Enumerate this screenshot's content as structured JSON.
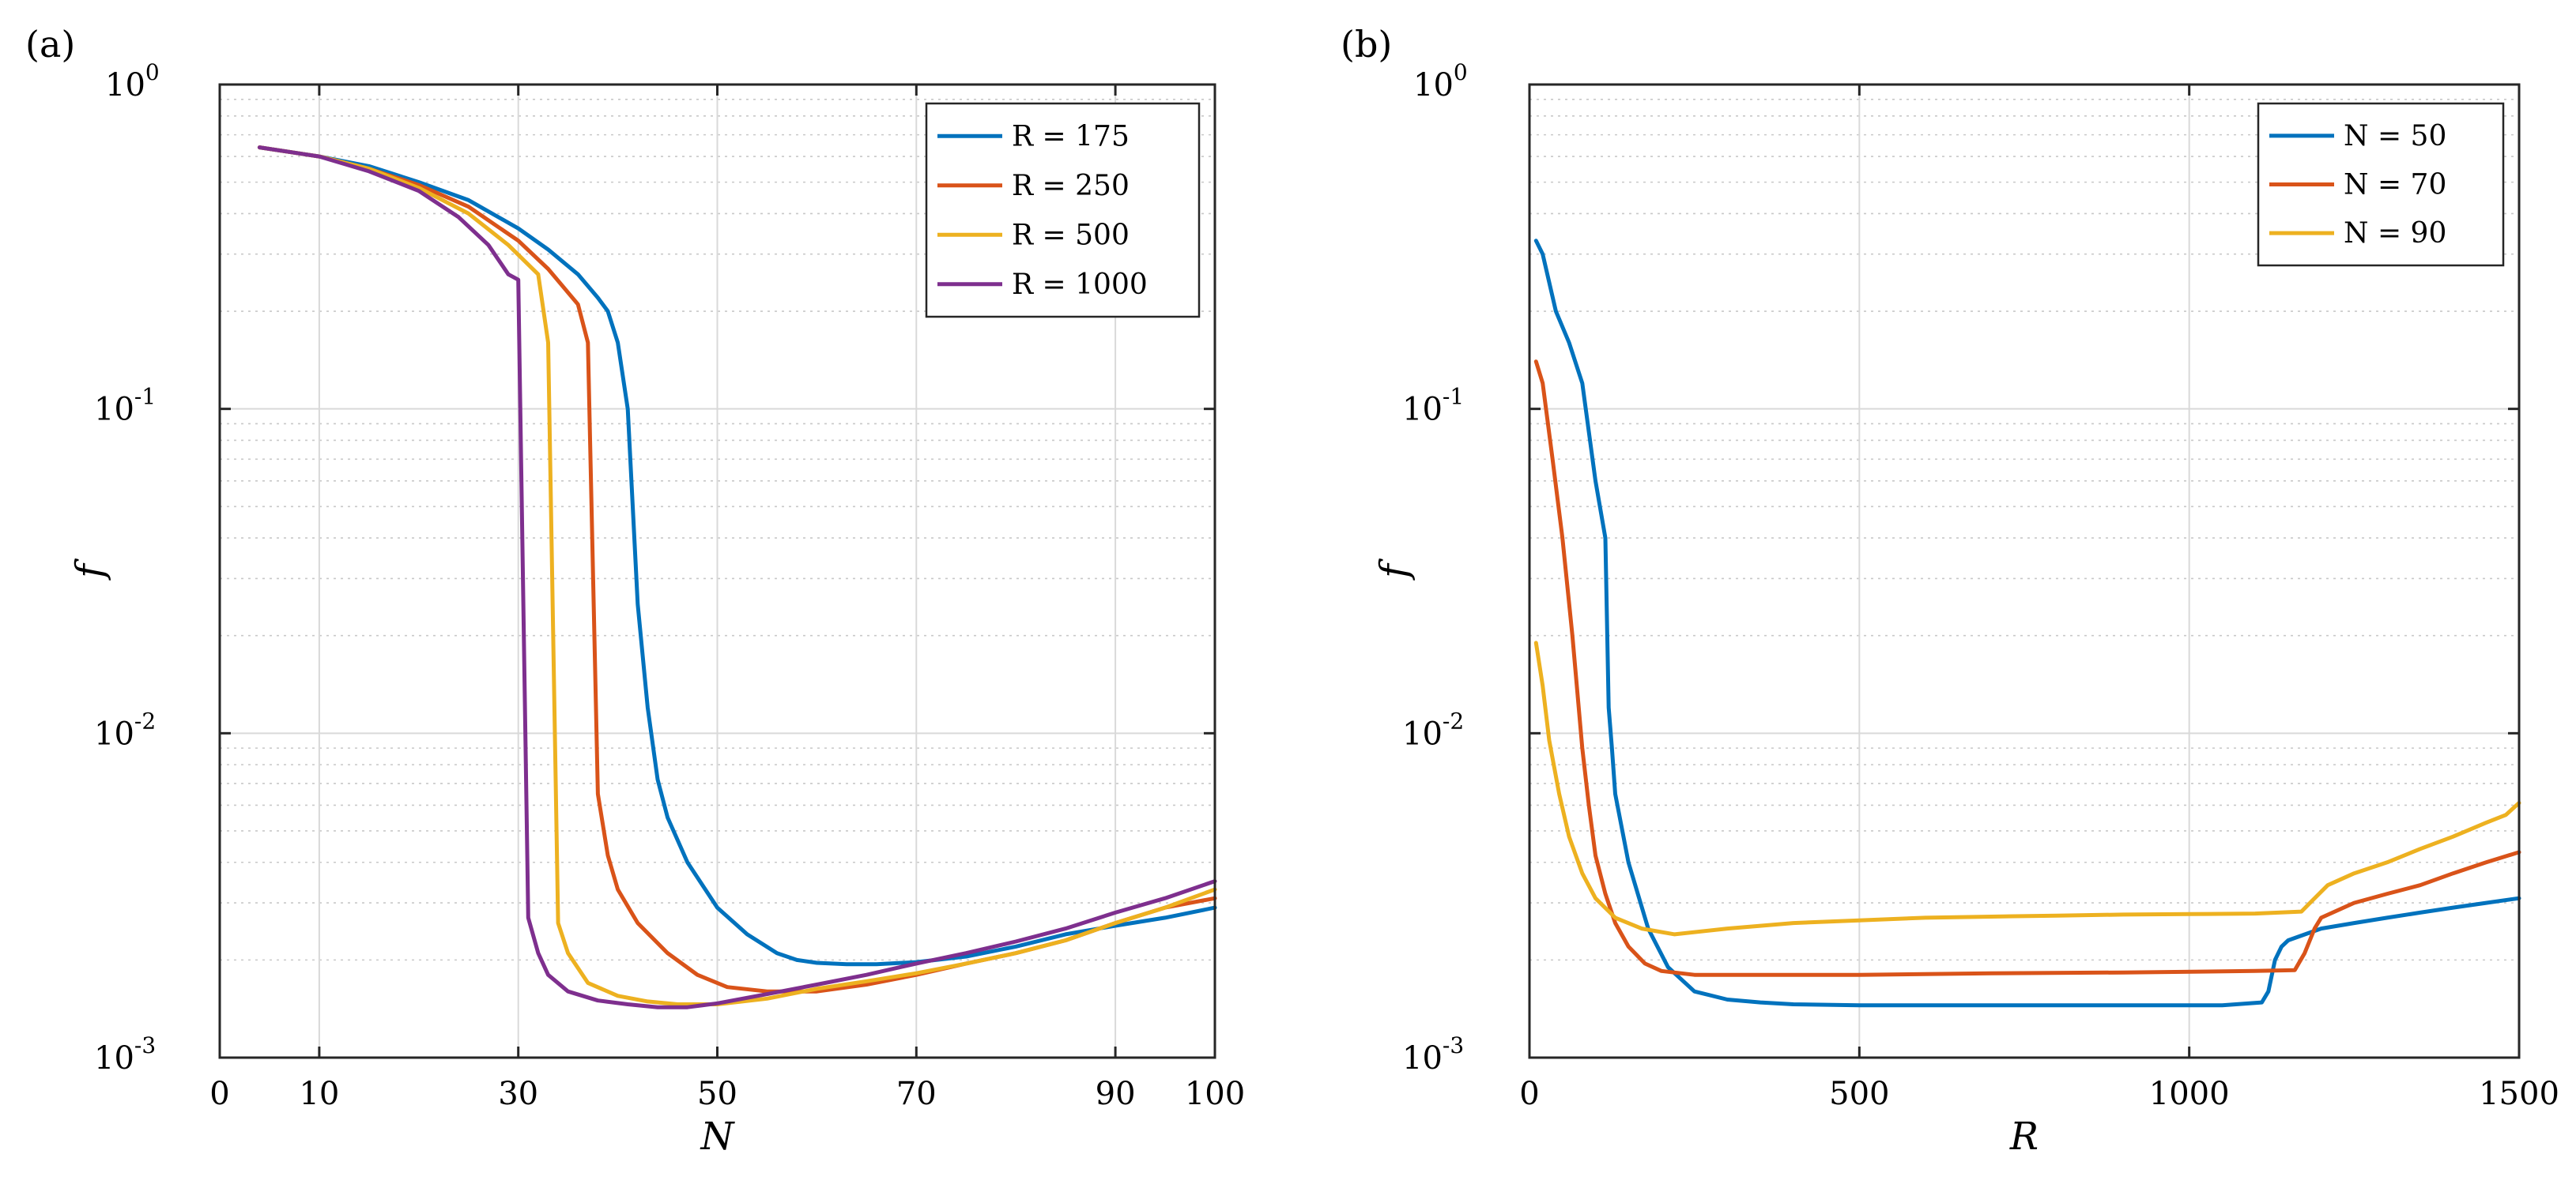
{
  "chart_data": [
    {
      "panel": "(a)",
      "type": "line",
      "xscale": "linear",
      "yscale": "log",
      "xlabel": "N",
      "ylabel": "f",
      "xlim": [
        0,
        100
      ],
      "ylim": [
        0.001,
        1
      ],
      "xticks": [
        0,
        10,
        30,
        50,
        70,
        90,
        100
      ],
      "ytick_labels": [
        {
          "base": "10",
          "exp": "0"
        },
        {
          "base": "10",
          "exp": "-1"
        },
        {
          "base": "10",
          "exp": "-2"
        },
        {
          "base": "10",
          "exp": "-3"
        }
      ],
      "grid": true,
      "legend_position": "top-right",
      "series": [
        {
          "name": "R = 175",
          "color": "#0072BD",
          "x": [
            4,
            10,
            15,
            20,
            25,
            30,
            33,
            36,
            38,
            39,
            40,
            41,
            42,
            43,
            44,
            45,
            47,
            50,
            53,
            56,
            58,
            60,
            63,
            66,
            70,
            75,
            80,
            85,
            90,
            95,
            100
          ],
          "y": [
            0.64,
            0.6,
            0.56,
            0.5,
            0.44,
            0.36,
            0.31,
            0.26,
            0.22,
            0.2,
            0.16,
            0.1,
            0.025,
            0.012,
            0.0072,
            0.0055,
            0.004,
            0.0029,
            0.0024,
            0.0021,
            0.002,
            0.00196,
            0.00194,
            0.00194,
            0.00197,
            0.00205,
            0.0022,
            0.0024,
            0.00255,
            0.0027,
            0.0029
          ]
        },
        {
          "name": "R = 250",
          "color": "#D95319",
          "x": [
            4,
            10,
            15,
            20,
            25,
            30,
            33,
            36,
            37,
            38,
            39,
            40,
            42,
            45,
            48,
            51,
            55,
            60,
            65,
            70,
            75,
            80,
            85,
            90,
            95,
            100
          ],
          "y": [
            0.64,
            0.6,
            0.55,
            0.49,
            0.42,
            0.33,
            0.27,
            0.21,
            0.16,
            0.0065,
            0.0042,
            0.0033,
            0.0026,
            0.0021,
            0.0018,
            0.00165,
            0.0016,
            0.0016,
            0.00168,
            0.0018,
            0.00195,
            0.0021,
            0.0023,
            0.0026,
            0.0029,
            0.0031
          ]
        },
        {
          "name": "R = 500",
          "color": "#EDB120",
          "x": [
            4,
            10,
            15,
            20,
            25,
            29,
            32,
            33,
            34,
            35,
            37,
            40,
            43,
            46,
            50,
            55,
            60,
            65,
            70,
            75,
            80,
            85,
            90,
            95,
            100
          ],
          "y": [
            0.64,
            0.6,
            0.55,
            0.48,
            0.4,
            0.32,
            0.26,
            0.16,
            0.0026,
            0.0021,
            0.0017,
            0.00155,
            0.00149,
            0.00146,
            0.00146,
            0.00152,
            0.00163,
            0.00172,
            0.00182,
            0.00195,
            0.0021,
            0.0023,
            0.0026,
            0.0029,
            0.0033
          ]
        },
        {
          "name": "R = 1000",
          "color": "#7E2F8E",
          "x": [
            4,
            10,
            15,
            20,
            24,
            27,
            29,
            30,
            31,
            32,
            33,
            35,
            38,
            41,
            44,
            47,
            50,
            55,
            60,
            65,
            70,
            75,
            80,
            85,
            90,
            95,
            100
          ],
          "y": [
            0.64,
            0.6,
            0.54,
            0.47,
            0.39,
            0.32,
            0.26,
            0.25,
            0.0027,
            0.0021,
            0.0018,
            0.0016,
            0.0015,
            0.00146,
            0.00143,
            0.00143,
            0.00147,
            0.00157,
            0.00168,
            0.0018,
            0.00195,
            0.0021,
            0.00228,
            0.0025,
            0.0028,
            0.0031,
            0.0035
          ]
        }
      ]
    },
    {
      "panel": "(b)",
      "type": "line",
      "xscale": "linear",
      "yscale": "log",
      "xlabel": "R",
      "ylabel": "f",
      "xlim": [
        0,
        1500
      ],
      "ylim": [
        0.001,
        1
      ],
      "xticks": [
        0,
        500,
        1000,
        1500
      ],
      "ytick_labels": [
        {
          "base": "10",
          "exp": "0"
        },
        {
          "base": "10",
          "exp": "-1"
        },
        {
          "base": "10",
          "exp": "-2"
        },
        {
          "base": "10",
          "exp": "-3"
        }
      ],
      "grid": true,
      "legend_position": "top-right",
      "series": [
        {
          "name": "N = 50",
          "color": "#0072BD",
          "x": [
            10,
            20,
            40,
            60,
            80,
            100,
            115,
            120,
            125,
            130,
            150,
            180,
            210,
            250,
            300,
            350,
            400,
            500,
            700,
            900,
            1050,
            1110,
            1120,
            1130,
            1140,
            1150,
            1200,
            1250,
            1300,
            1350,
            1400,
            1450,
            1500
          ],
          "y": [
            0.33,
            0.3,
            0.2,
            0.16,
            0.12,
            0.06,
            0.04,
            0.012,
            0.009,
            0.0065,
            0.004,
            0.0025,
            0.0019,
            0.0016,
            0.00151,
            0.00148,
            0.00146,
            0.00145,
            0.00145,
            0.00145,
            0.00145,
            0.00148,
            0.0016,
            0.002,
            0.0022,
            0.0023,
            0.0025,
            0.0026,
            0.0027,
            0.0028,
            0.0029,
            0.003,
            0.0031
          ]
        },
        {
          "name": "N = 70",
          "color": "#D95319",
          "x": [
            10,
            20,
            35,
            50,
            65,
            80,
            90,
            100,
            115,
            130,
            150,
            175,
            200,
            250,
            300,
            400,
            500,
            700,
            900,
            1100,
            1160,
            1175,
            1190,
            1200,
            1250,
            1300,
            1350,
            1400,
            1450,
            1500
          ],
          "y": [
            0.14,
            0.12,
            0.07,
            0.04,
            0.02,
            0.009,
            0.006,
            0.0042,
            0.0032,
            0.0026,
            0.0022,
            0.00195,
            0.00185,
            0.0018,
            0.0018,
            0.0018,
            0.0018,
            0.00182,
            0.00183,
            0.00185,
            0.00186,
            0.0021,
            0.0025,
            0.0027,
            0.003,
            0.0032,
            0.0034,
            0.0037,
            0.004,
            0.0043
          ]
        },
        {
          "name": "N = 90",
          "color": "#EDB120",
          "x": [
            10,
            20,
            30,
            45,
            60,
            80,
            100,
            130,
            170,
            220,
            300,
            400,
            500,
            600,
            700,
            800,
            900,
            1000,
            1100,
            1170,
            1190,
            1210,
            1250,
            1300,
            1350,
            1400,
            1450,
            1480,
            1500
          ],
          "y": [
            0.019,
            0.014,
            0.0095,
            0.0065,
            0.0048,
            0.0037,
            0.0031,
            0.0027,
            0.0025,
            0.0024,
            0.0025,
            0.0026,
            0.00265,
            0.0027,
            0.00272,
            0.00274,
            0.00276,
            0.00277,
            0.00278,
            0.00282,
            0.0031,
            0.0034,
            0.0037,
            0.004,
            0.0044,
            0.0048,
            0.0053,
            0.0056,
            0.0061
          ]
        }
      ]
    }
  ]
}
